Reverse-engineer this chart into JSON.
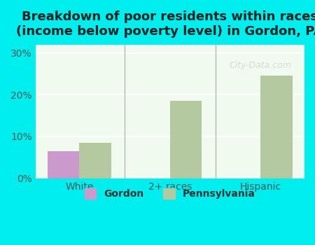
{
  "title": "Breakdown of poor residents within races\n(income below poverty level) in Gordon, PA",
  "categories": [
    "White",
    "2+ races",
    "Hispanic"
  ],
  "gordon_values": [
    6.5,
    0,
    0
  ],
  "pennsylvania_values": [
    8.5,
    18.5,
    24.5
  ],
  "gordon_color": "#cc99cc",
  "pennsylvania_color": "#b5c9a0",
  "bar_width": 0.35,
  "ylim": [
    0,
    32
  ],
  "yticks": [
    0,
    10,
    20,
    30
  ],
  "ytick_labels": [
    "0%",
    "10%",
    "20%",
    "30%"
  ],
  "background_color": "#00eeee",
  "plot_bg_color": "#f0faee",
  "title_fontsize": 13,
  "label_fontsize": 10,
  "legend_labels": [
    "Gordon",
    "Pennsylvania"
  ],
  "watermark": "City-Data.com"
}
